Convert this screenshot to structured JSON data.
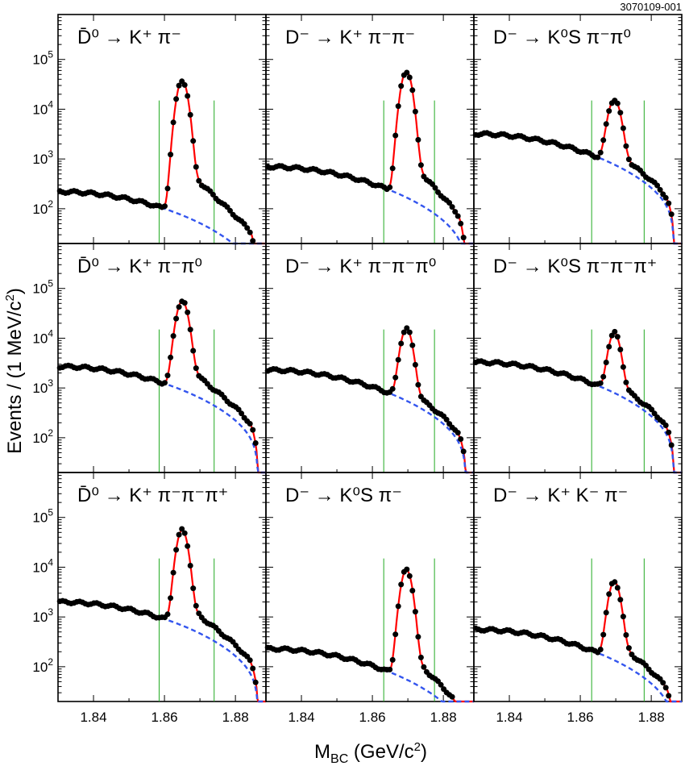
{
  "figure_id": "3070109-001",
  "colors": {
    "fit": "#ff0000",
    "background": "#3355ee",
    "window": "#22aa22",
    "points": "#000000"
  },
  "chart_data": {
    "type": "scatter",
    "title": "",
    "xlabel_main": "M",
    "xlabel_sub": "BC",
    "xlabel_tail": " (GeV/c",
    "xlabel_sup": "2",
    "xlabel_close": ")",
    "ylabel_main": "Events / (1 MeV/c",
    "ylabel_sup": "2",
    "ylabel_close": ")",
    "xlim": [
      1.83,
      1.8886
    ],
    "ylim": [
      20,
      800000
    ],
    "yscale": "log",
    "x_ticks": [
      "1.84",
      "1.86",
      "1.88"
    ],
    "x_tick_values": [
      1.84,
      1.86,
      1.88
    ],
    "y_ticks": [
      {
        "base": "10",
        "exp": "2"
      },
      {
        "base": "10",
        "exp": "3"
      },
      {
        "base": "10",
        "exp": "4"
      },
      {
        "base": "10",
        "exp": "5"
      }
    ],
    "y_tick_values": [
      100,
      1000,
      10000,
      100000
    ],
    "panels": [
      {
        "label": "D̄⁰ → K⁺ π⁻",
        "bg": 220,
        "peak": 38000,
        "mean": 1.865,
        "sigma": 0.00125,
        "tail": 650,
        "tail_decay": 0.006,
        "window": [
          1.8585,
          1.874
        ],
        "endpoint": 1.8864
      },
      {
        "label": "D⁻ → K⁺ π⁻π⁻",
        "bg": 700,
        "peak": 58000,
        "mean": 1.8696,
        "sigma": 0.00125,
        "tail": 900,
        "tail_decay": 0.005,
        "window": [
          1.8632,
          1.8775
        ],
        "endpoint": 1.8864
      },
      {
        "label": "D⁻ → K⁰S π⁻π⁰",
        "bg": 3200,
        "peak": 15000,
        "mean": 1.8696,
        "sigma": 0.0014,
        "tail": 600,
        "tail_decay": 0.006,
        "window": [
          1.8632,
          1.878
        ],
        "endpoint": 1.8864
      },
      {
        "label": "D̄⁰ → K⁺ π⁻π⁰",
        "bg": 2700,
        "peak": 55000,
        "mean": 1.865,
        "sigma": 0.00135,
        "tail": 2200,
        "tail_decay": 0.006,
        "window": [
          1.8585,
          1.874
        ],
        "endpoint": 1.8864
      },
      {
        "label": "D⁻ → K⁺ π⁻π⁻π⁰",
        "bg": 2300,
        "peak": 15000,
        "mean": 1.8696,
        "sigma": 0.0013,
        "tail": 400,
        "tail_decay": 0.006,
        "window": [
          1.8632,
          1.8775
        ],
        "endpoint": 1.8864
      },
      {
        "label": "D⁻ → K⁰S π⁻π⁻π⁺",
        "bg": 3300,
        "peak": 12000,
        "mean": 1.8696,
        "sigma": 0.0013,
        "tail": 500,
        "tail_decay": 0.006,
        "window": [
          1.8632,
          1.878
        ],
        "endpoint": 1.8864
      },
      {
        "label": "D̄⁰ → K⁺ π⁻π⁻π⁺",
        "bg": 2000,
        "peak": 55000,
        "mean": 1.865,
        "sigma": 0.00125,
        "tail": 1300,
        "tail_decay": 0.006,
        "window": [
          1.8585,
          1.874
        ],
        "endpoint": 1.8864
      },
      {
        "label": "D⁻ → K⁰S π⁻",
        "bg": 230,
        "peak": 8800,
        "mean": 1.8696,
        "sigma": 0.00125,
        "tail": 150,
        "tail_decay": 0.005,
        "window": [
          1.8632,
          1.8775
        ],
        "endpoint": 1.8864
      },
      {
        "label": "D⁻ → K⁺ K⁻ π⁻",
        "bg": 560,
        "peak": 5000,
        "mean": 1.8696,
        "sigma": 0.0013,
        "tail": 200,
        "tail_decay": 0.006,
        "window": [
          1.8632,
          1.878
        ],
        "endpoint": 1.8864
      }
    ]
  }
}
